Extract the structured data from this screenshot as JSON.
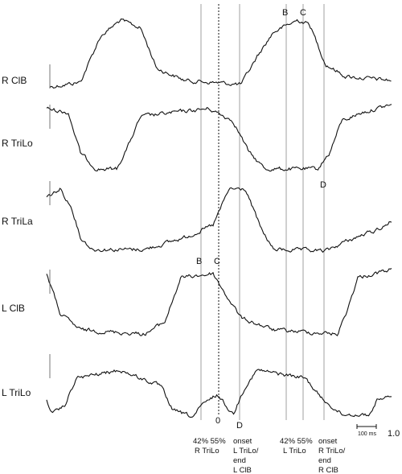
{
  "traces": [
    {
      "label": "R ClB"
    },
    {
      "label": "R TriLo"
    },
    {
      "label": "R TriLa"
    },
    {
      "label": "L ClB"
    },
    {
      "label": "L TriLo"
    }
  ],
  "markers": {
    "top_b": "B",
    "top_c": "C",
    "top_d": "D",
    "mid_b": "B",
    "mid_c": "C",
    "zero": "0",
    "bottom_d": "D"
  },
  "annotations": {
    "left_pct": "42% 55%",
    "left_pct_sub": "R TriLo",
    "left_onset": [
      "onset",
      "L TriLo/",
      "end",
      "L ClB"
    ],
    "right_pct": "42% 55%",
    "right_pct_sub": "L TriLo",
    "right_onset": [
      "onset",
      "R TriLo/",
      "end",
      "R ClB"
    ]
  },
  "scale_bar": "100 ms",
  "axis_end": "1.0"
}
